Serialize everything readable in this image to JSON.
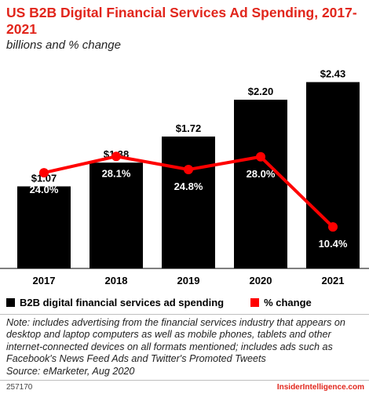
{
  "header": {
    "title": "US B2B Digital Financial Services Ad Spending, 2017-2021",
    "subtitle": "billions and % change"
  },
  "chart_data": {
    "type": "bar",
    "categories": [
      "2017",
      "2018",
      "2019",
      "2020",
      "2021"
    ],
    "series": [
      {
        "name": "B2B digital financial services ad spending",
        "type": "bar",
        "values": [
          1.07,
          1.38,
          1.72,
          2.2,
          2.43
        ],
        "labels": [
          "$1.07",
          "$1.38",
          "$1.72",
          "$2.20",
          "$2.43"
        ],
        "color": "#000000"
      },
      {
        "name": "% change",
        "type": "line",
        "values": [
          24.0,
          28.1,
          24.8,
          28.0,
          10.4
        ],
        "labels": [
          "24.0%",
          "28.1%",
          "24.8%",
          "28.0%",
          "10.4%"
        ],
        "color": "#ff0000"
      }
    ],
    "ylim": [
      0,
      2.6
    ],
    "ylim_pct": [
      0,
      50
    ],
    "grid": false,
    "legend_position": "bottom"
  },
  "notes": {
    "note": "Note: includes advertising from the financial services industry that appears on desktop and laptop computers as well as mobile phones, tablets and other internet-connected devices on all formats mentioned; includes ads such as Facebook's News Feed Ads and Twitter's Promoted Tweets",
    "source": "Source: eMarketer, Aug 2020"
  },
  "footer": {
    "id": "257170",
    "brand": "InsiderIntelligence.com"
  }
}
